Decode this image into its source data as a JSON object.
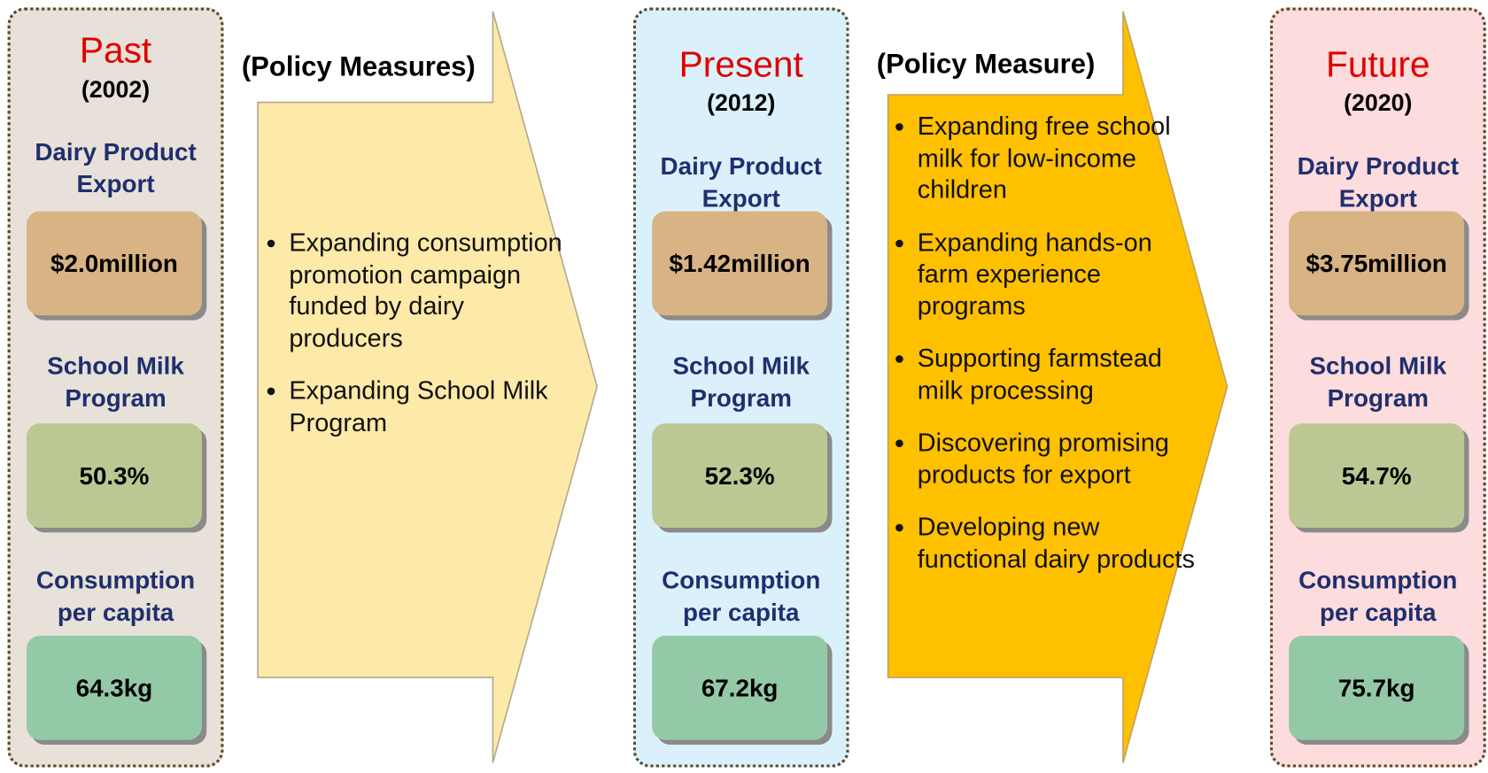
{
  "panels": [
    {
      "title": "Past",
      "year": "(2002)",
      "metrics": [
        {
          "label": "Dairy Product Export",
          "value": "$2.0million"
        },
        {
          "label": "School Milk Program",
          "value": "50.3%"
        },
        {
          "label": "Consumption per capita",
          "value": "64.3kg"
        }
      ]
    },
    {
      "title": "Present",
      "year": "(2012)",
      "metrics": [
        {
          "label": "Dairy Product Export",
          "value": "$1.42million"
        },
        {
          "label": "School Milk Program",
          "value": "52.3%"
        },
        {
          "label": "Consumption per capita",
          "value": "67.2kg"
        }
      ]
    },
    {
      "title": "Future",
      "year": "(2020)",
      "metrics": [
        {
          "label": "Dairy Product Export",
          "value": "$3.75million"
        },
        {
          "label": "School Milk Program",
          "value": "54.7%"
        },
        {
          "label": "Consumption per capita",
          "value": "75.7kg"
        }
      ]
    }
  ],
  "arrows": [
    {
      "heading": "(Policy Measures)",
      "items": [
        "Expanding consumption promotion campaign  funded by dairy producers",
        "Expanding School Milk Program"
      ]
    },
    {
      "heading": "(Policy Measure)",
      "items": [
        "Expanding free school milk for low-income children",
        "Expanding hands-on farm experience programs",
        "Supporting farmstead  milk processing",
        "Discovering promising products for export",
        "Developing  new functional dairy products"
      ]
    }
  ]
}
